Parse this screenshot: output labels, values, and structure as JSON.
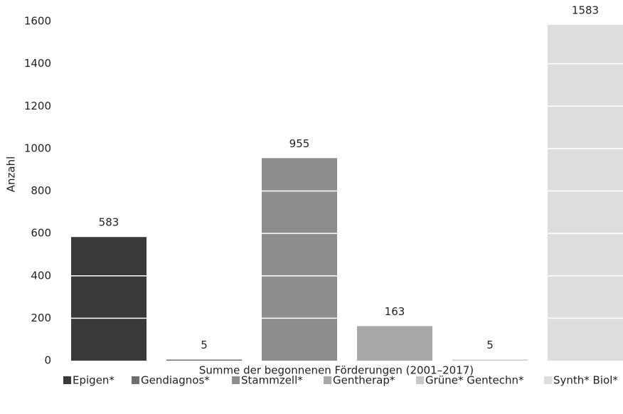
{
  "chart_data": {
    "type": "bar",
    "categories": [
      "Summe der begonnenen Förderungen (2001–2017)"
    ],
    "ylabel": "Anzahl",
    "series": [
      {
        "name": "Epigen*",
        "color": "#3a3a3a",
        "values": [
          583
        ]
      },
      {
        "name": "Gendiagnos*",
        "color": "#6f6f6f",
        "values": [
          5
        ]
      },
      {
        "name": "Stammzell*",
        "color": "#8d8d8d",
        "values": [
          955
        ]
      },
      {
        "name": "Gentherap*",
        "color": "#a8a8a8",
        "values": [
          163
        ]
      },
      {
        "name": "Grüne* Gentechn*",
        "color": "#c8c8c8",
        "values": [
          5
        ]
      },
      {
        "name": "Synth* Biol*",
        "color": "#dddddd",
        "values": [
          1583
        ]
      }
    ],
    "ylim": [
      0,
      1600
    ],
    "yticks": [
      0,
      200,
      400,
      600,
      800,
      1000,
      1200,
      1400,
      1600
    ],
    "grid": true,
    "legend": "bottom"
  }
}
